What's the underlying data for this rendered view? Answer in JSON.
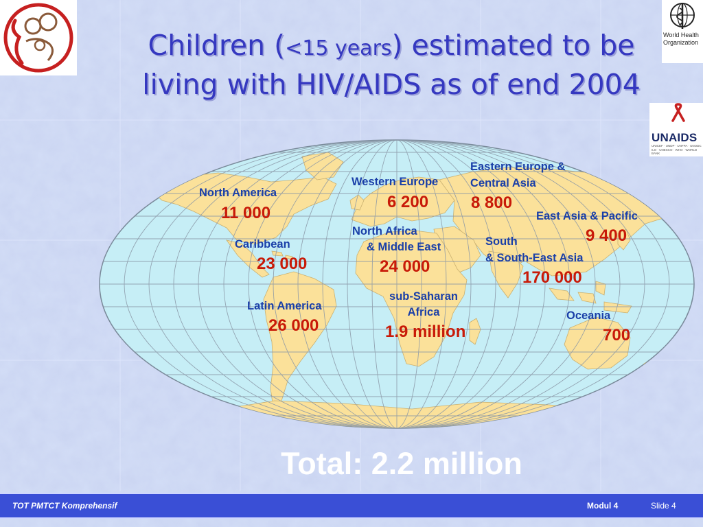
{
  "slide": {
    "title_part1": "Children (",
    "title_small": "<15 years",
    "title_part2": ") estimated to be",
    "title_line2": "living with HIV/AIDS as of end 2004"
  },
  "logos": {
    "who_text": "World Health Organization",
    "unaids_brand": "UNAIDS",
    "unaids_sub": "UNICEF · UNDP · UNFPA · UNODC ILO · UNESCO · WHO · WORLD BANK"
  },
  "regions": [
    {
      "id": "north-america",
      "label": [
        "North America"
      ],
      "value": "11 000"
    },
    {
      "id": "caribbean",
      "label": [
        "Caribbean"
      ],
      "value": "23 000"
    },
    {
      "id": "latin-america",
      "label": [
        "Latin America"
      ],
      "value": "26 000"
    },
    {
      "id": "western-europe",
      "label": [
        "Western Europe"
      ],
      "value": "6 200"
    },
    {
      "id": "north-africa-middle-east",
      "label": [
        "North Africa",
        "& Middle East"
      ],
      "value": "24 000"
    },
    {
      "id": "sub-saharan-africa",
      "label": [
        "sub-Saharan",
        "Africa"
      ],
      "value": "1.9 million"
    },
    {
      "id": "eastern-europe-central-asia",
      "label": [
        "Eastern Europe &",
        "Central Asia"
      ],
      "value": "8 800"
    },
    {
      "id": "east-asia-pacific",
      "label": [
        "East Asia & Pacific"
      ],
      "value": "9 400"
    },
    {
      "id": "south-southeast-asia",
      "label": [
        "South",
        "& South-East Asia"
      ],
      "value": "170 000"
    },
    {
      "id": "oceania",
      "label": [
        "Oceania"
      ],
      "value": "700"
    }
  ],
  "total": "Total: 2.2 million",
  "footer": {
    "left": "TOT PMTCT Komprehensif",
    "module": "Modul 4",
    "slide": "Slide 4"
  },
  "colors": {
    "ocean": "#c6eef6",
    "land": "#fbe19a",
    "label": "#1a3fa8",
    "value": "#c81a08",
    "title": "#3538c0",
    "footer": "#3a4fd6"
  }
}
